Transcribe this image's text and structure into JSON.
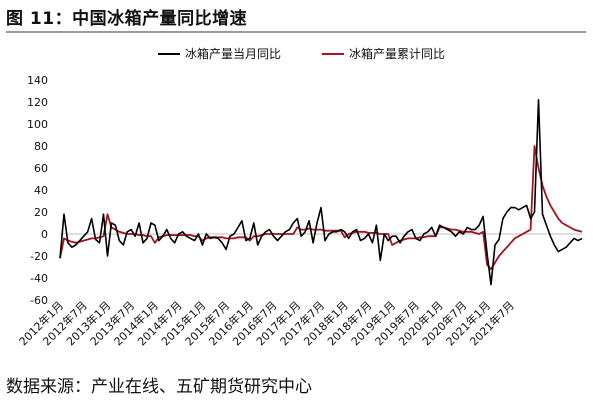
{
  "header": {
    "title": "图 11：中国冰箱产量同比增速"
  },
  "footer": {
    "source": "数据来源：产业在线、五矿期货研究中心"
  },
  "chart_data": {
    "type": "line",
    "title": "图 11：中国冰箱产量同比增速",
    "ylim": [
      -60,
      140
    ],
    "yticks": [
      -60,
      -40,
      -20,
      0,
      20,
      40,
      60,
      80,
      100,
      120,
      140
    ],
    "xtick_labels": [
      "2012年1月",
      "2012年7月",
      "2013年1月",
      "2013年7月",
      "2014年1月",
      "2014年7月",
      "2015年1月",
      "2015年7月",
      "2016年1月",
      "2016年7月",
      "2017年1月",
      "2017年7月",
      "2018年1月",
      "2018年7月",
      "2019年1月",
      "2019年7月",
      "2020年1月",
      "2020年7月",
      "2021年1月",
      "2021年7月"
    ],
    "legend_position": "top",
    "colors": {
      "monthly": "#000000",
      "cumulative": "#a3141e"
    },
    "series": [
      {
        "name": "冰箱产量当月同比",
        "key": "monthly",
        "values": [
          -22,
          18,
          -8,
          -12,
          -10,
          -6,
          -2,
          2,
          14,
          -5,
          -8,
          18,
          -20,
          10,
          8,
          -6,
          -10,
          2,
          4,
          -2,
          10,
          -8,
          -4,
          10,
          8,
          -6,
          -2,
          4,
          -4,
          -8,
          0,
          2,
          -2,
          -4,
          -6,
          0,
          -10,
          0,
          -4,
          -3,
          -4,
          -8,
          -14,
          -2,
          0,
          6,
          12,
          -6,
          -4,
          10,
          -10,
          -2,
          2,
          4,
          -2,
          -6,
          -2,
          2,
          4,
          10,
          14,
          -2,
          2,
          12,
          -8,
          10,
          24,
          -6,
          0,
          2,
          2,
          4,
          2,
          -4,
          2,
          4,
          -6,
          -4,
          0,
          -8,
          8,
          -24,
          0,
          -6,
          -2,
          -2,
          -8,
          -2,
          2,
          4,
          -4,
          -6,
          0,
          2,
          6,
          -2,
          8,
          6,
          4,
          2,
          -2,
          2,
          0,
          6,
          4,
          4,
          8,
          16,
          -18,
          -46,
          -10,
          -5,
          14,
          20,
          24,
          24,
          22,
          24,
          26,
          14,
          20,
          122,
          18,
          8,
          -2,
          -10,
          -16,
          -14,
          -12,
          -8,
          -4,
          -6,
          -4
        ]
      },
      {
        "name": "冰箱产量累计同比",
        "key": "cumulative",
        "values": [
          -22,
          -4,
          -6,
          -7,
          -8,
          -7,
          -6,
          -5,
          -4,
          -4,
          -3,
          -2,
          18,
          6,
          4,
          2,
          1,
          0,
          0,
          0,
          -1,
          -1,
          -2,
          -2,
          -8,
          -3,
          -2,
          -1,
          -1,
          -1,
          -1,
          -1,
          -1,
          -1,
          -2,
          -2,
          -6,
          -4,
          -3,
          -3,
          -3,
          -3,
          -4,
          -4,
          -4,
          -3,
          -3,
          -3,
          -6,
          -2,
          -2,
          -1,
          0,
          0,
          0,
          0,
          0,
          0,
          0,
          0,
          6,
          4,
          4,
          5,
          4,
          4,
          4,
          3,
          3,
          3,
          3,
          3,
          -3,
          0,
          1,
          2,
          2,
          2,
          1,
          1,
          1,
          0,
          0,
          0,
          -10,
          -8,
          -6,
          -5,
          -4,
          -4,
          -4,
          -3,
          -3,
          -2,
          -2,
          -2,
          6,
          6,
          5,
          4,
          4,
          3,
          2,
          2,
          2,
          1,
          0,
          2,
          -28,
          -32,
          -26,
          -20,
          -16,
          -12,
          -8,
          -4,
          -2,
          0,
          2,
          4,
          80,
          60,
          44,
          34,
          26,
          20,
          14,
          10,
          8,
          6,
          4,
          3,
          2
        ]
      }
    ]
  }
}
